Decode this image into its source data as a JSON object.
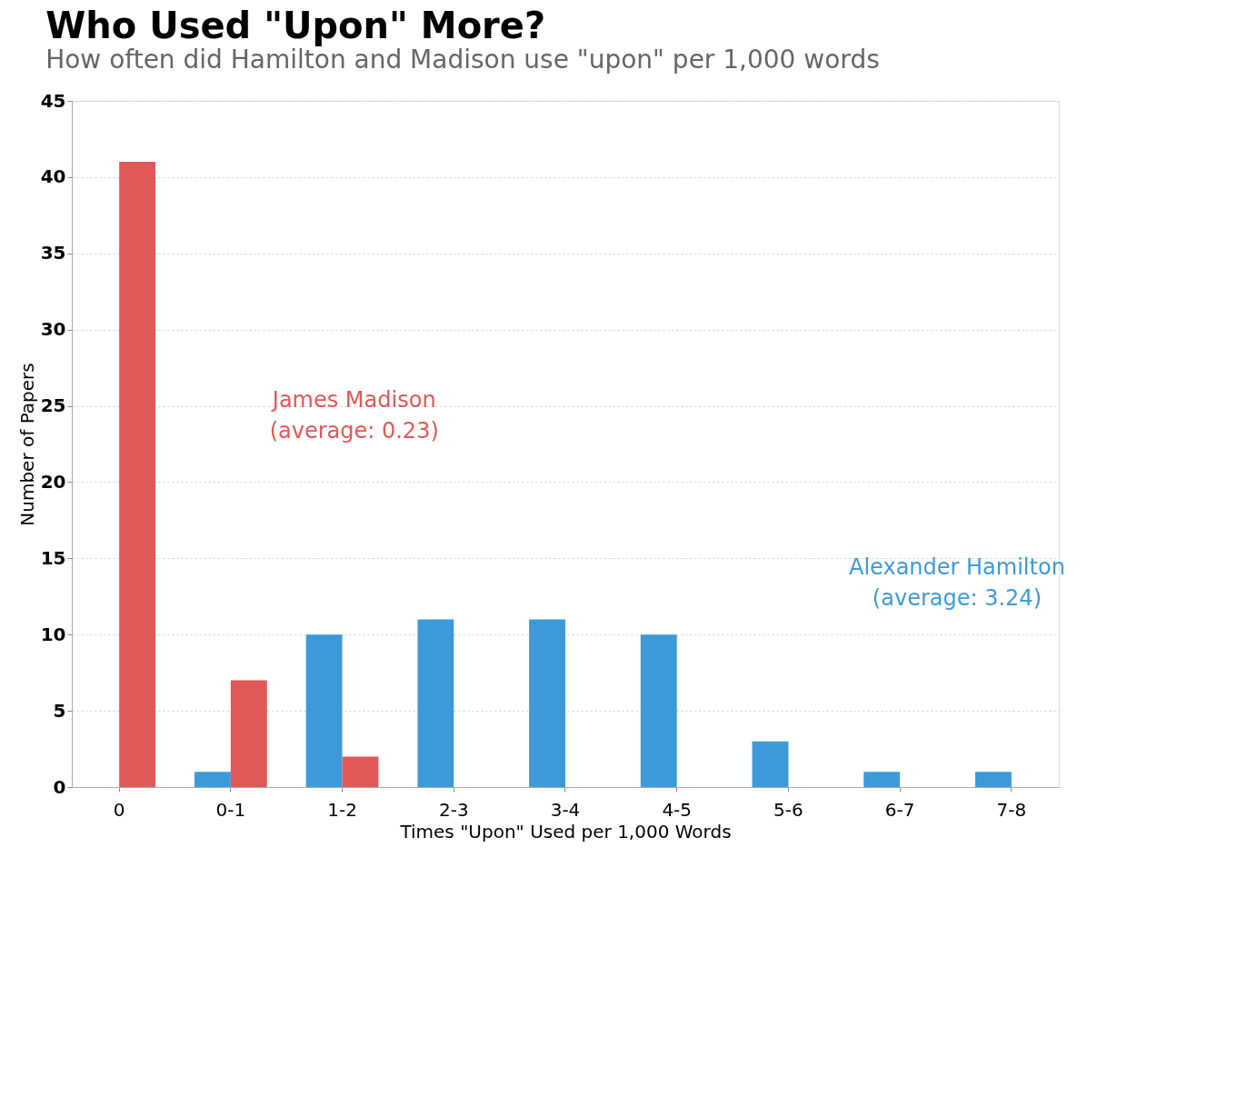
{
  "chart_data": {
    "type": "bar",
    "title": "Who Used \"Upon\" More?",
    "subtitle": "How often did Hamilton and Madison use \"upon\" per 1,000 words",
    "xlabel": "Times \"Upon\" Used per 1,000 Words",
    "ylabel": "Number of Papers",
    "categories": [
      "0",
      "0-1",
      "1-2",
      "2-3",
      "3-4",
      "4-5",
      "5-6",
      "6-7",
      "7-8"
    ],
    "series": [
      {
        "name": "Alexander Hamilton",
        "color": "#3d9ad8",
        "values": [
          null,
          1,
          10,
          11,
          11,
          10,
          3,
          1,
          1
        ]
      },
      {
        "name": "James Madison",
        "color": "#e05858",
        "values": [
          41,
          7,
          2,
          null,
          null,
          null,
          null,
          null,
          null
        ]
      }
    ],
    "annotations": [
      "(average: 3.24)",
      "(average: 0.23)"
    ],
    "ylim": [
      0,
      45
    ],
    "yticks": [
      0,
      5,
      10,
      15,
      20,
      25,
      30,
      35,
      40,
      45
    ],
    "grid": "y",
    "legend": false
  }
}
